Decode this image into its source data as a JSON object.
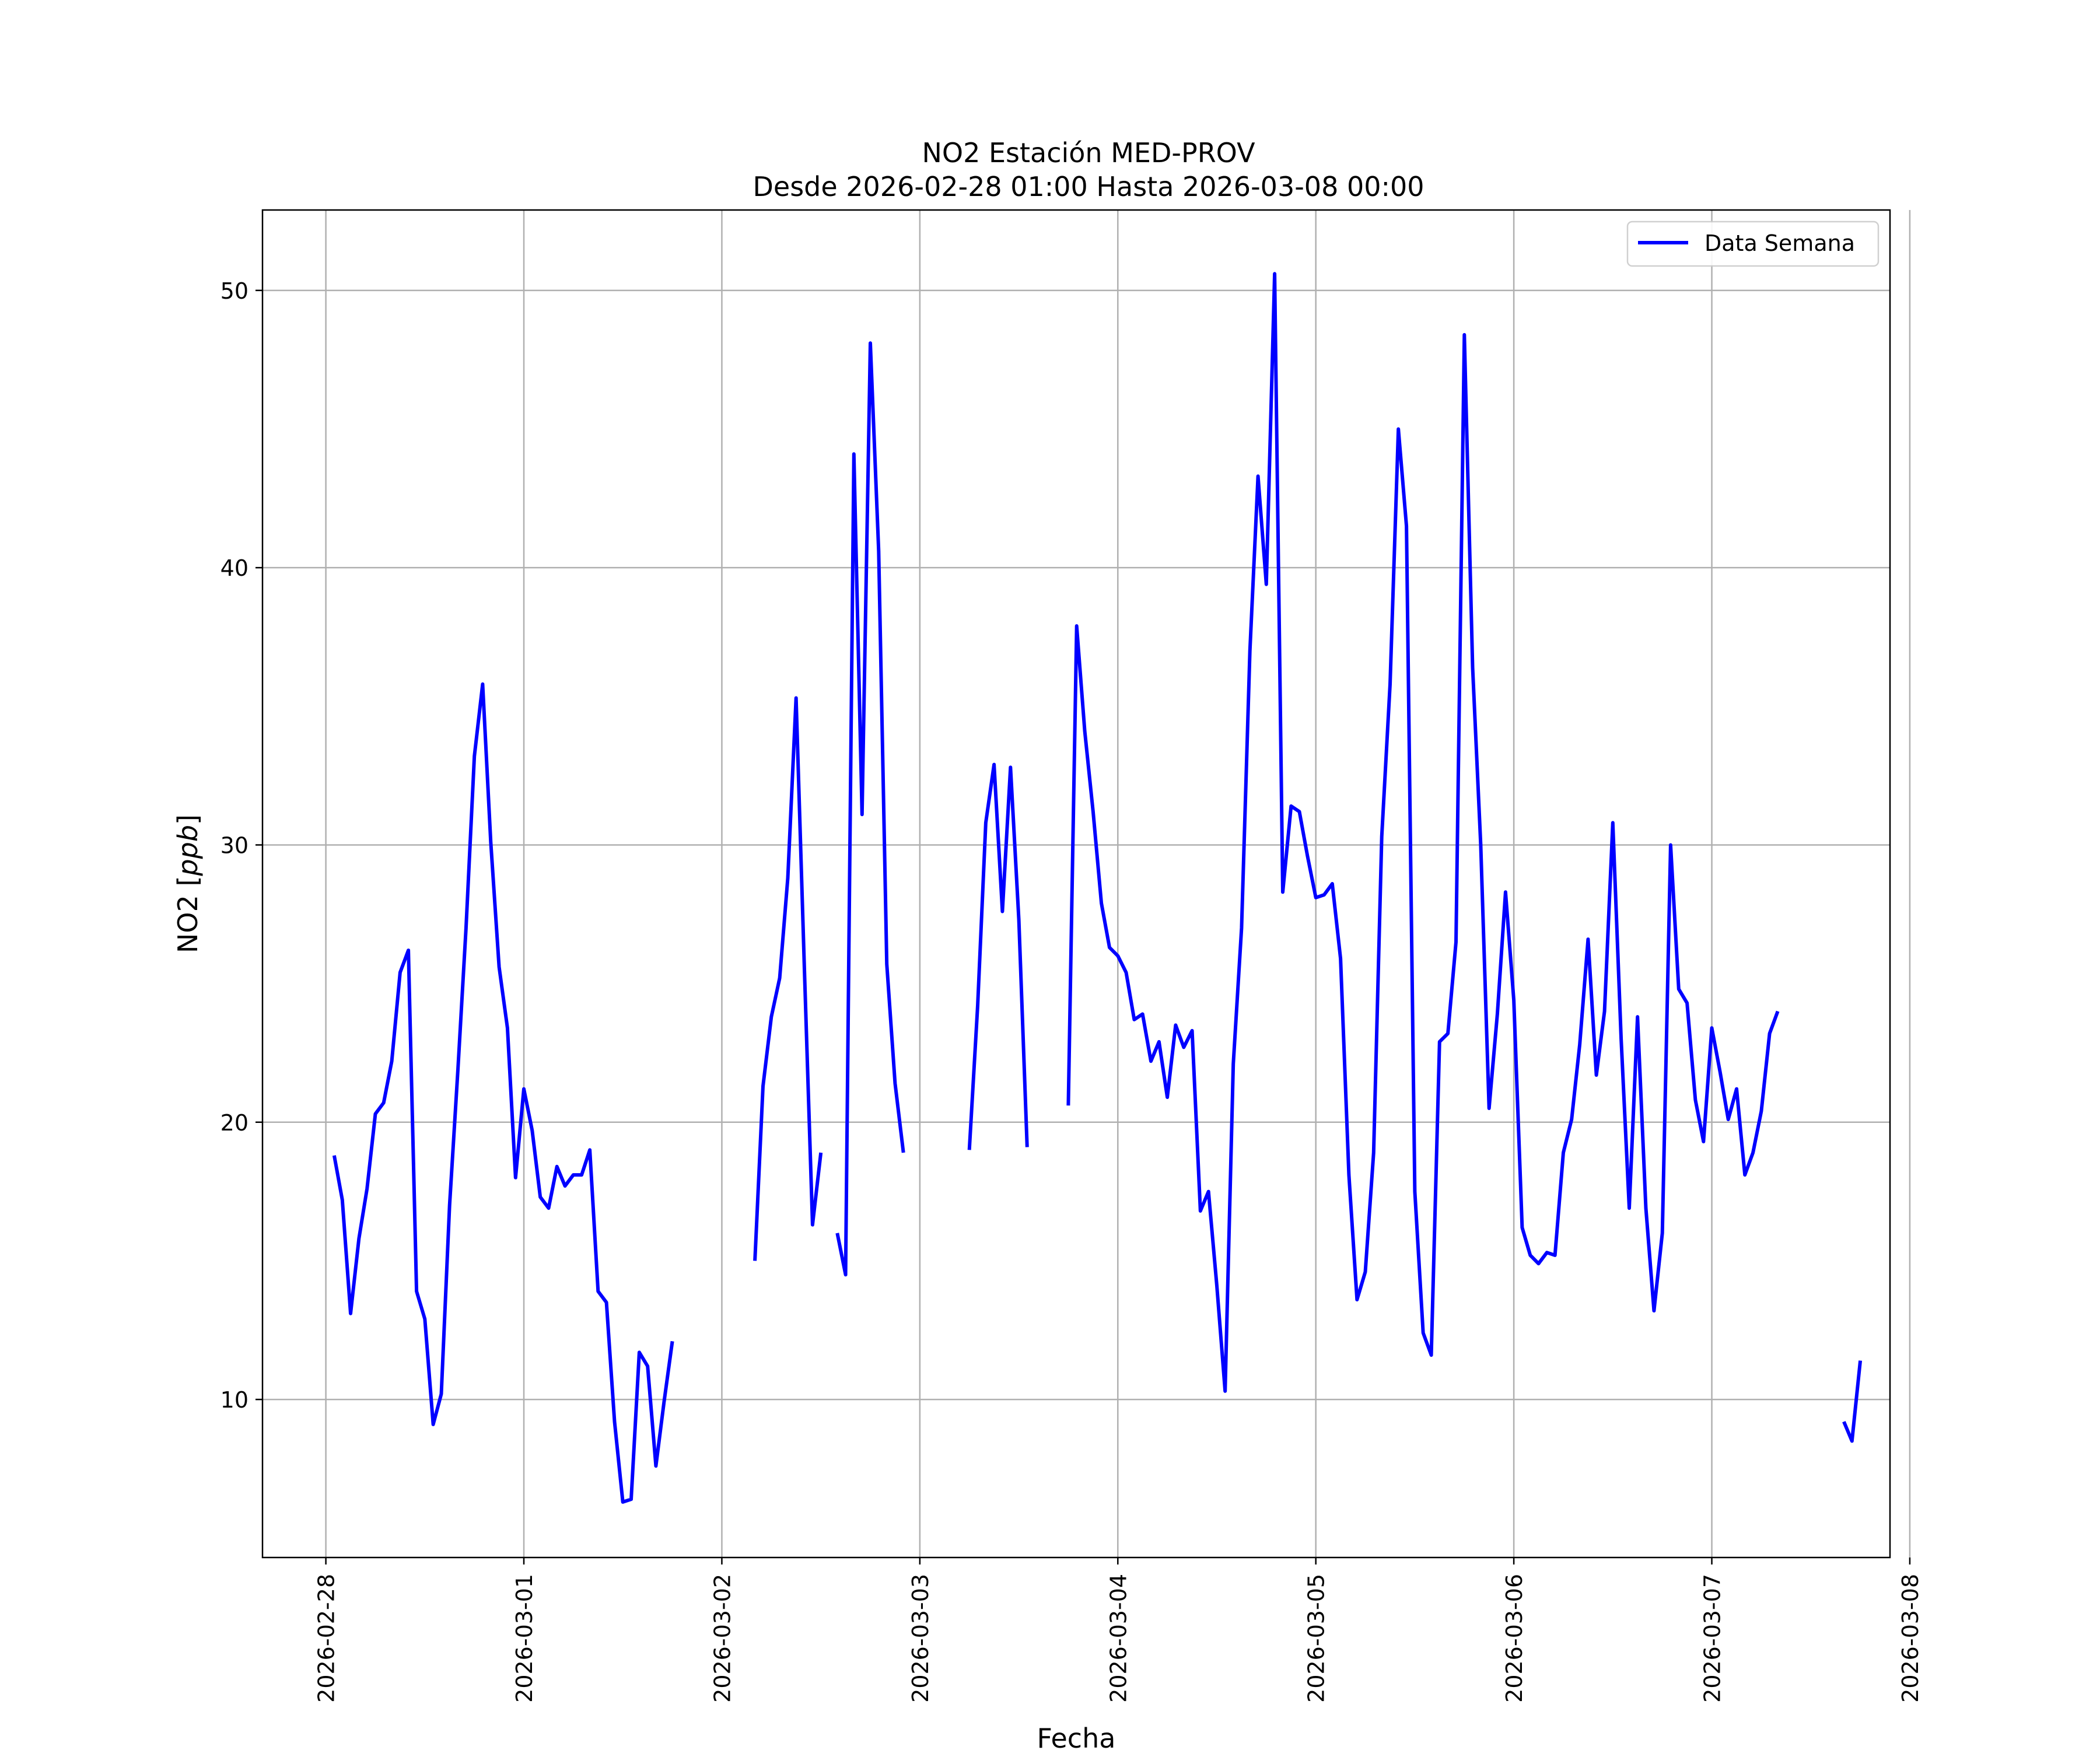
{
  "chart_data": {
    "type": "line",
    "title": "NO2 Estación MED-PROV",
    "subtitle": "Desde 2026-02-28 01:00 Hasta 2026-03-08 00:00",
    "xlabel": "Fecha",
    "ylabel_prefix": "NO2 [",
    "ylabel_unit": "ppb",
    "ylabel_suffix": "]",
    "xlim": [
      -0.32,
      7.9
    ],
    "ylim": [
      4.3,
      52.9
    ],
    "x_ticks": [
      {
        "label": "2026-02-28",
        "value": 0
      },
      {
        "label": "2026-03-01",
        "value": 1
      },
      {
        "label": "2026-03-02",
        "value": 2
      },
      {
        "label": "2026-03-03",
        "value": 3
      },
      {
        "label": "2026-03-04",
        "value": 4
      },
      {
        "label": "2026-03-05",
        "value": 5
      },
      {
        "label": "2026-03-06",
        "value": 6
      },
      {
        "label": "2026-03-07",
        "value": 7
      },
      {
        "label": "2026-03-08",
        "value": 8
      }
    ],
    "y_ticks": [
      {
        "label": "10",
        "value": 10
      },
      {
        "label": "20",
        "value": 20
      },
      {
        "label": "30",
        "value": 30
      },
      {
        "label": "40",
        "value": 40
      },
      {
        "label": "50",
        "value": 50
      }
    ],
    "grid": true,
    "legend_position": "top-right",
    "series": [
      {
        "name": "Data Semana",
        "color": "#0000ff",
        "segments": [
          [
            [
              0.042,
              18.8
            ],
            [
              0.083,
              17.2
            ],
            [
              0.125,
              13.1
            ],
            [
              0.167,
              15.8
            ],
            [
              0.208,
              17.6
            ],
            [
              0.25,
              20.3
            ],
            [
              0.292,
              20.7
            ],
            [
              0.333,
              22.2
            ],
            [
              0.375,
              25.4
            ],
            [
              0.417,
              26.2
            ],
            [
              0.458,
              13.9
            ],
            [
              0.5,
              12.9
            ],
            [
              0.542,
              9.1
            ],
            [
              0.583,
              10.2
            ],
            [
              0.625,
              17.0
            ],
            [
              0.667,
              21.9
            ],
            [
              0.708,
              27.0
            ],
            [
              0.75,
              33.2
            ],
            [
              0.792,
              35.8
            ],
            [
              0.833,
              30.1
            ],
            [
              0.875,
              25.6
            ],
            [
              0.917,
              23.4
            ],
            [
              0.958,
              18.0
            ],
            [
              1.0,
              21.2
            ],
            [
              1.042,
              19.7
            ],
            [
              1.083,
              17.3
            ],
            [
              1.125,
              16.9
            ],
            [
              1.167,
              18.4
            ],
            [
              1.208,
              17.7
            ],
            [
              1.25,
              18.1
            ],
            [
              1.292,
              18.1
            ],
            [
              1.333,
              19.0
            ],
            [
              1.375,
              13.9
            ],
            [
              1.417,
              13.5
            ],
            [
              1.458,
              9.2
            ],
            [
              1.5,
              6.3
            ],
            [
              1.542,
              6.4
            ],
            [
              1.583,
              11.7
            ],
            [
              1.625,
              11.2
            ],
            [
              1.667,
              7.6
            ],
            [
              1.708,
              9.9
            ],
            [
              1.75,
              12.1
            ]
          ],
          [
            [
              2.167,
              15.0
            ],
            [
              2.208,
              21.3
            ],
            [
              2.25,
              23.8
            ],
            [
              2.292,
              25.2
            ],
            [
              2.333,
              28.8
            ],
            [
              2.375,
              35.3
            ],
            [
              2.417,
              25.5
            ],
            [
              2.458,
              16.3
            ],
            [
              2.5,
              18.9
            ]
          ],
          [
            [
              2.583,
              16.0
            ],
            [
              2.625,
              14.5
            ],
            [
              2.667,
              44.1
            ],
            [
              2.708,
              31.1
            ],
            [
              2.75,
              48.1
            ],
            [
              2.792,
              40.6
            ],
            [
              2.833,
              25.7
            ],
            [
              2.875,
              21.4
            ],
            [
              2.917,
              18.9
            ]
          ],
          [
            [
              3.25,
              19.0
            ],
            [
              3.292,
              24.2
            ],
            [
              3.333,
              30.8
            ],
            [
              3.375,
              32.9
            ],
            [
              3.417,
              27.6
            ],
            [
              3.458,
              32.8
            ],
            [
              3.5,
              27.3
            ],
            [
              3.542,
              19.1
            ]
          ],
          [
            [
              3.75,
              20.6
            ],
            [
              3.792,
              37.9
            ],
            [
              3.833,
              34.1
            ],
            [
              3.875,
              31.2
            ],
            [
              3.917,
              27.9
            ],
            [
              3.958,
              26.3
            ],
            [
              4.0,
              26.0
            ],
            [
              4.042,
              25.4
            ],
            [
              4.083,
              23.7
            ],
            [
              4.125,
              23.9
            ],
            [
              4.167,
              22.2
            ],
            [
              4.208,
              22.9
            ],
            [
              4.25,
              20.9
            ],
            [
              4.292,
              23.5
            ],
            [
              4.333,
              22.7
            ],
            [
              4.375,
              23.3
            ],
            [
              4.417,
              16.8
            ],
            [
              4.458,
              17.5
            ],
            [
              4.5,
              14.1
            ],
            [
              4.542,
              10.3
            ],
            [
              4.583,
              22.1
            ],
            [
              4.625,
              27.0
            ],
            [
              4.667,
              37.0
            ],
            [
              4.708,
              43.3
            ],
            [
              4.75,
              39.4
            ],
            [
              4.792,
              50.6
            ],
            [
              4.833,
              28.3
            ],
            [
              4.875,
              31.4
            ],
            [
              4.917,
              31.2
            ],
            [
              4.958,
              29.6
            ],
            [
              5.0,
              28.1
            ],
            [
              5.042,
              28.2
            ],
            [
              5.083,
              28.6
            ],
            [
              5.125,
              25.9
            ],
            [
              5.167,
              18.1
            ],
            [
              5.208,
              13.6
            ],
            [
              5.25,
              14.6
            ],
            [
              5.292,
              18.9
            ],
            [
              5.333,
              30.3
            ],
            [
              5.375,
              35.8
            ],
            [
              5.417,
              45.0
            ],
            [
              5.458,
              41.5
            ],
            [
              5.5,
              17.5
            ],
            [
              5.542,
              12.4
            ],
            [
              5.583,
              11.6
            ],
            [
              5.625,
              22.9
            ],
            [
              5.667,
              23.2
            ],
            [
              5.708,
              26.5
            ],
            [
              5.75,
              48.4
            ],
            [
              5.792,
              36.4
            ],
            [
              5.833,
              30.0
            ],
            [
              5.875,
              20.5
            ],
            [
              5.917,
              23.9
            ],
            [
              5.958,
              28.3
            ],
            [
              6.0,
              24.4
            ],
            [
              6.042,
              16.2
            ],
            [
              6.083,
              15.2
            ],
            [
              6.125,
              14.9
            ],
            [
              6.167,
              15.3
            ],
            [
              6.208,
              15.2
            ],
            [
              6.25,
              18.9
            ],
            [
              6.292,
              20.1
            ],
            [
              6.333,
              22.8
            ],
            [
              6.375,
              26.6
            ],
            [
              6.417,
              21.7
            ],
            [
              6.458,
              24.0
            ],
            [
              6.5,
              30.8
            ],
            [
              6.542,
              23.0
            ],
            [
              6.583,
              16.9
            ],
            [
              6.625,
              23.8
            ],
            [
              6.667,
              16.9
            ],
            [
              6.708,
              13.2
            ],
            [
              6.75,
              16.0
            ],
            [
              6.792,
              30.0
            ],
            [
              6.833,
              24.8
            ],
            [
              6.875,
              24.3
            ],
            [
              6.917,
              20.8
            ],
            [
              6.958,
              19.3
            ],
            [
              7.0,
              23.4
            ],
            [
              7.042,
              21.8
            ],
            [
              7.083,
              20.1
            ],
            [
              7.125,
              21.2
            ],
            [
              7.167,
              18.1
            ],
            [
              7.208,
              18.9
            ],
            [
              7.25,
              20.4
            ],
            [
              7.292,
              23.2
            ],
            [
              7.333,
              24.0
            ]
          ],
          [
            [
              7.667,
              9.2
            ],
            [
              7.708,
              8.5
            ],
            [
              7.75,
              11.4
            ]
          ]
        ]
      }
    ]
  }
}
